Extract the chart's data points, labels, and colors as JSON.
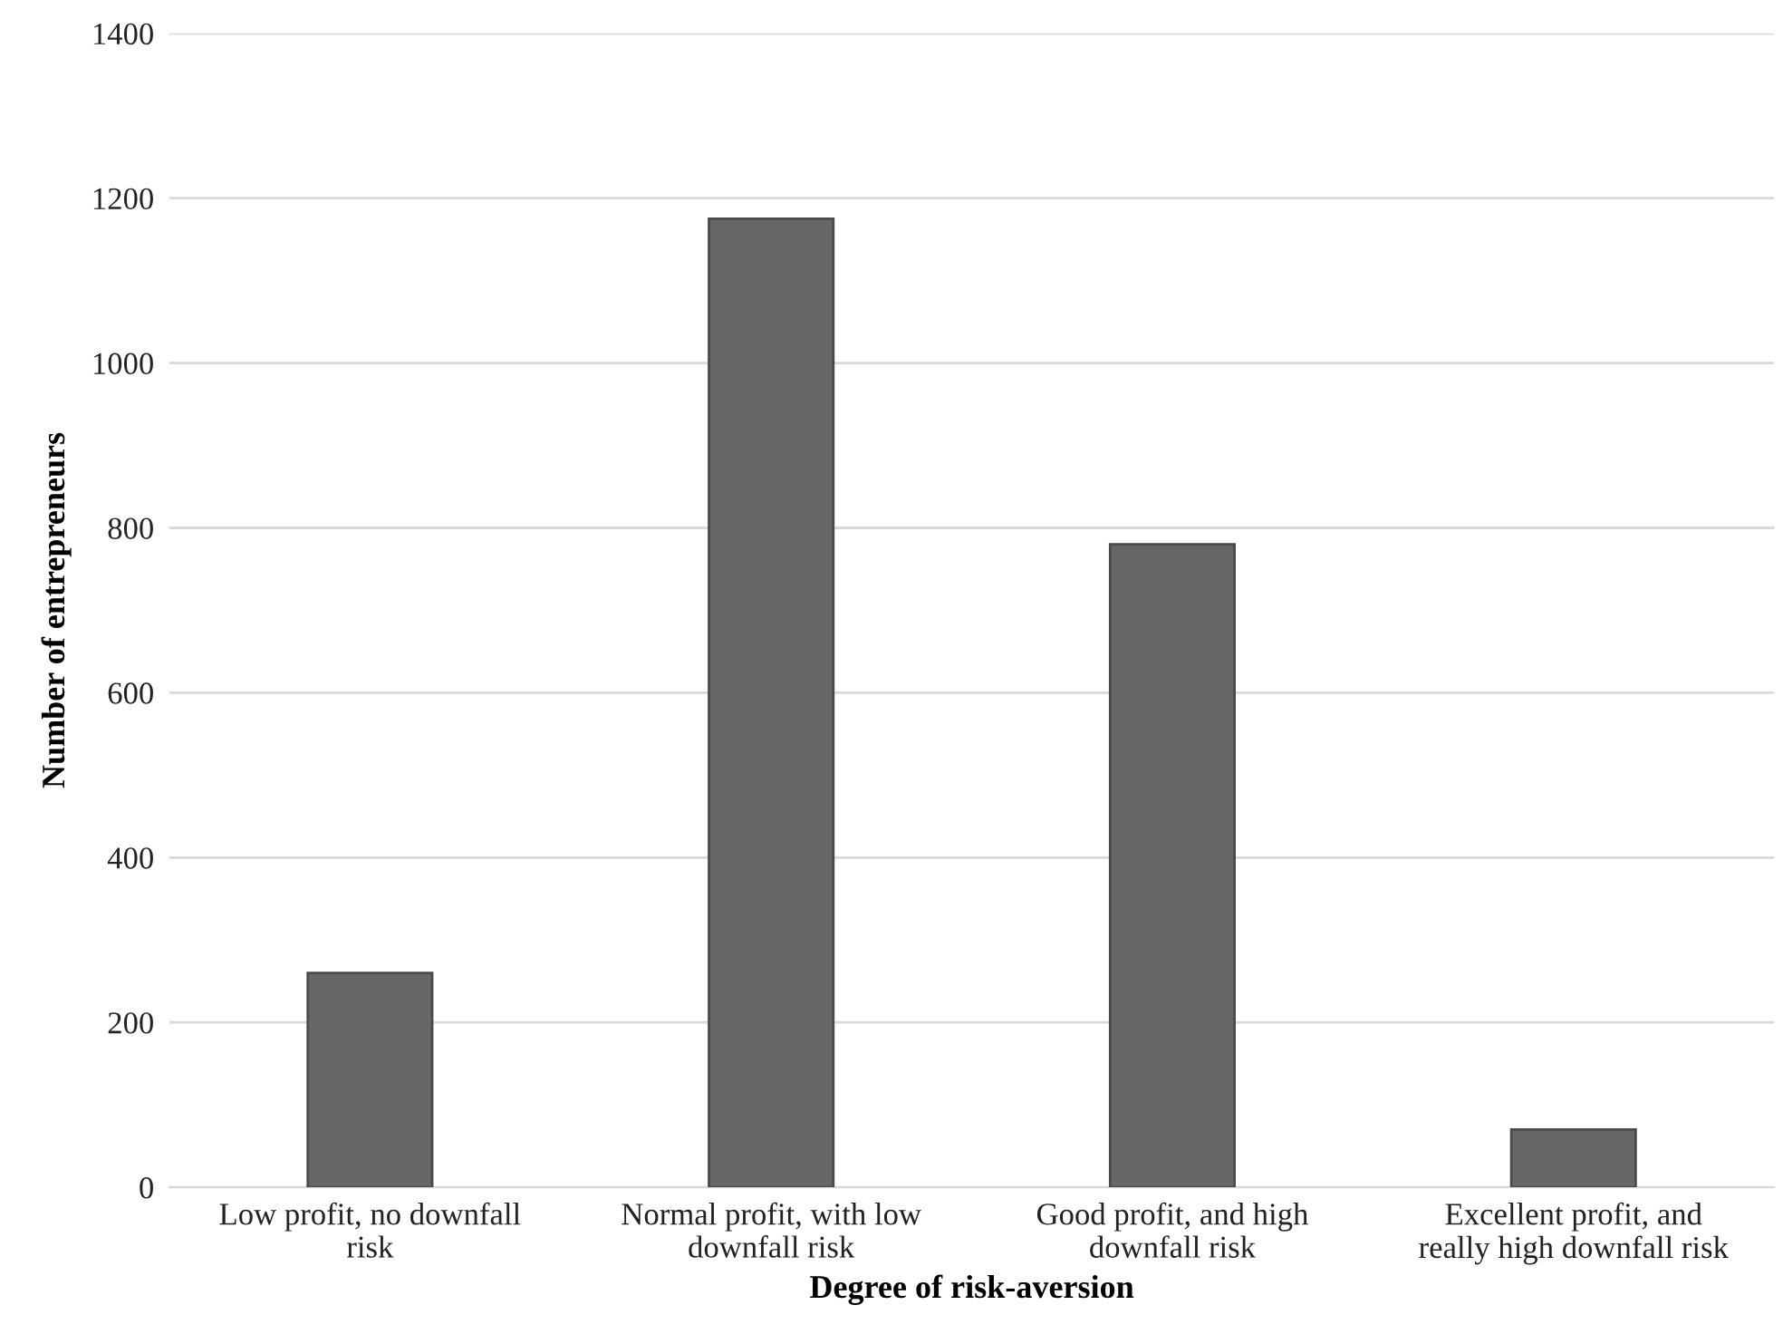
{
  "chart_data": {
    "type": "bar",
    "xlabel": "Degree of risk-aversion",
    "ylabel": "Number of entrepreneurs",
    "categories": [
      "Low profit, no downfall\nrisk",
      "Normal profit, with low\ndownfall risk",
      "Good profit, and high\ndownfall risk",
      "Excellent profit, and\nreally high downfall risk"
    ],
    "values": [
      260,
      1175,
      780,
      70
    ],
    "color": "#676767",
    "ylim": [
      0,
      1400
    ],
    "yticks": [
      0,
      200,
      400,
      600,
      800,
      1000,
      1200,
      1400
    ],
    "grid": "y",
    "legend": false
  }
}
